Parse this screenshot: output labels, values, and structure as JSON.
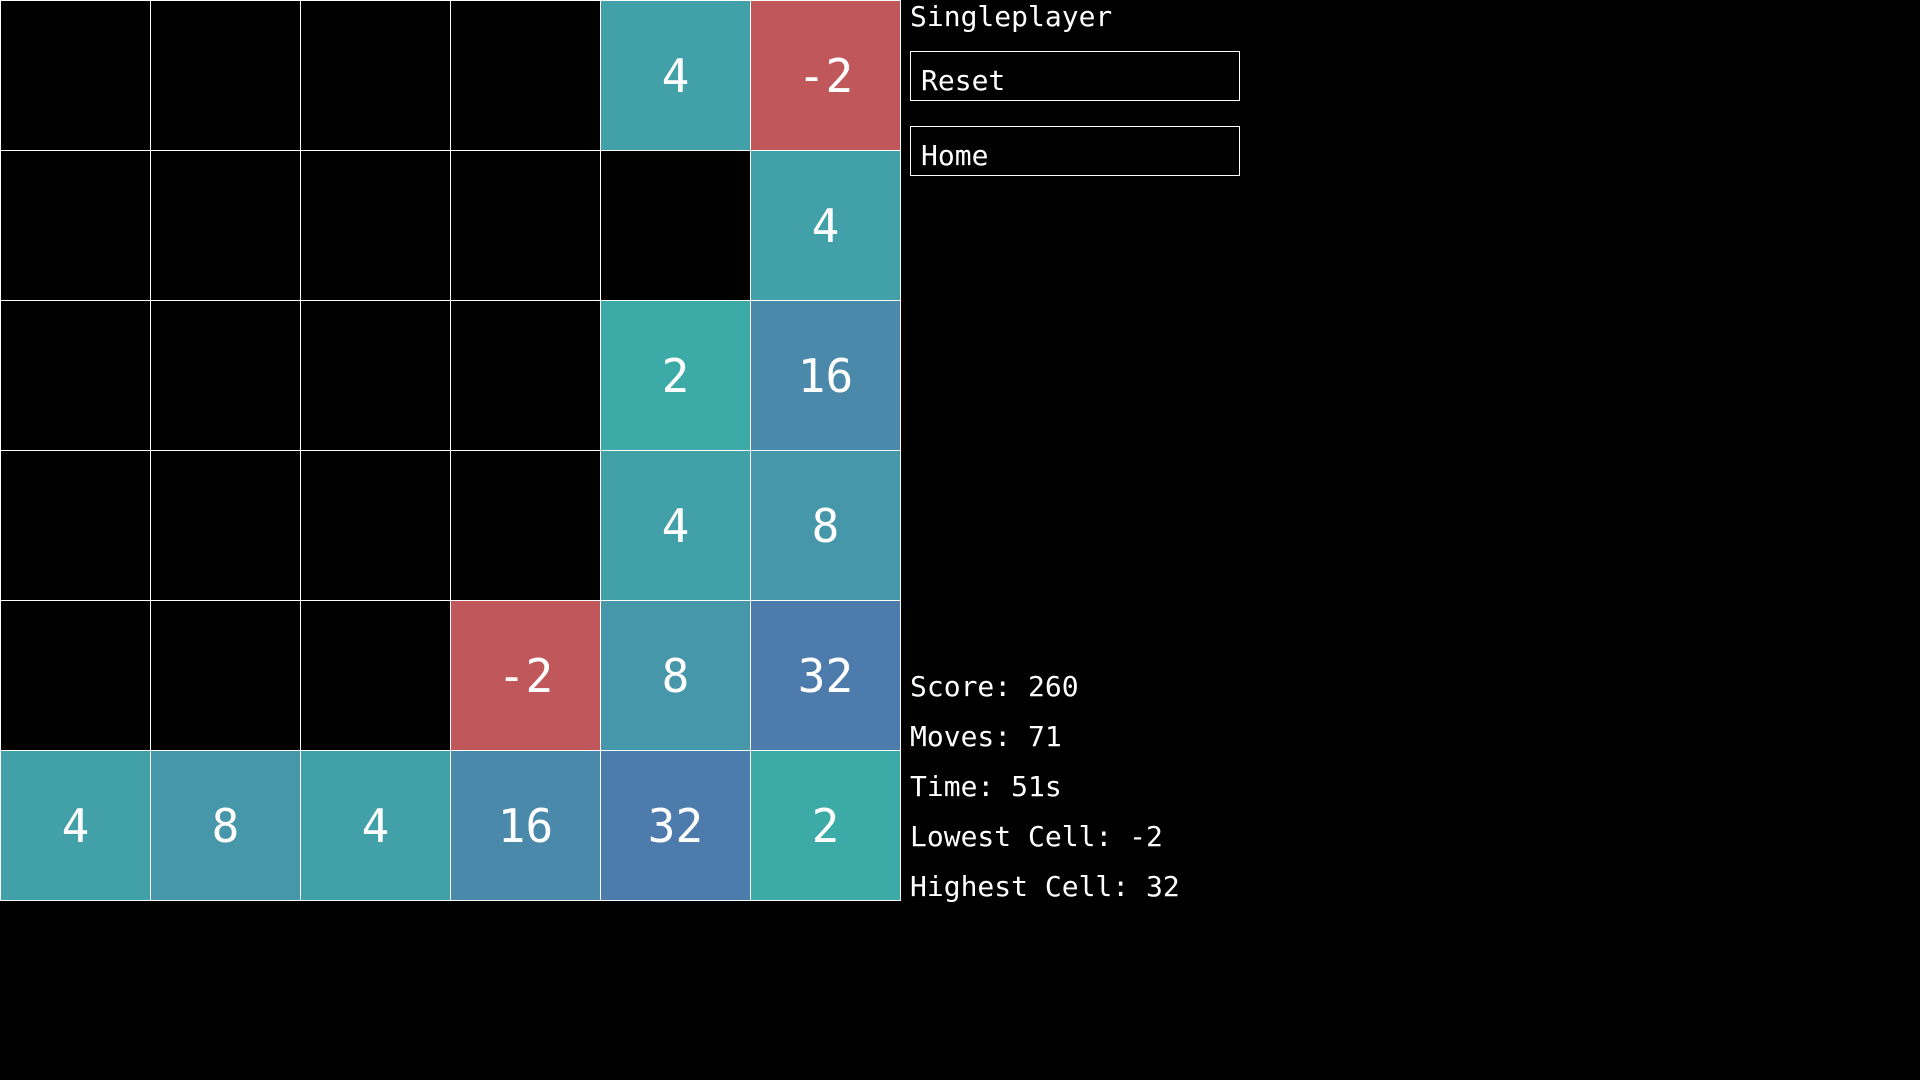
{
  "header": {
    "mode_title": "Singleplayer"
  },
  "buttons": {
    "reset_label": "Reset",
    "home_label": "Home"
  },
  "stats": {
    "score": "Score: 260",
    "moves": "Moves: 71",
    "time": "Time: 51s",
    "lowest": "Lowest Cell: -2",
    "highest": "Highest Cell: 32"
  },
  "colors": {
    "empty": "#000000",
    "neg2": "#c0575b",
    "2": "#3caba8",
    "4": "#42a0a9",
    "8": "#4797aa",
    "16": "#4b89ab",
    "32": "#4d7bac"
  },
  "board": [
    [
      "",
      "",
      "",
      "",
      "4",
      "-2"
    ],
    [
      "",
      "",
      "",
      "",
      "",
      "4"
    ],
    [
      "",
      "",
      "",
      "",
      "2",
      "16"
    ],
    [
      "",
      "",
      "",
      "",
      "4",
      "8"
    ],
    [
      "",
      "",
      "",
      "-2",
      "8",
      "32"
    ],
    [
      "4",
      "8",
      "4",
      "16",
      "32",
      "2"
    ]
  ]
}
